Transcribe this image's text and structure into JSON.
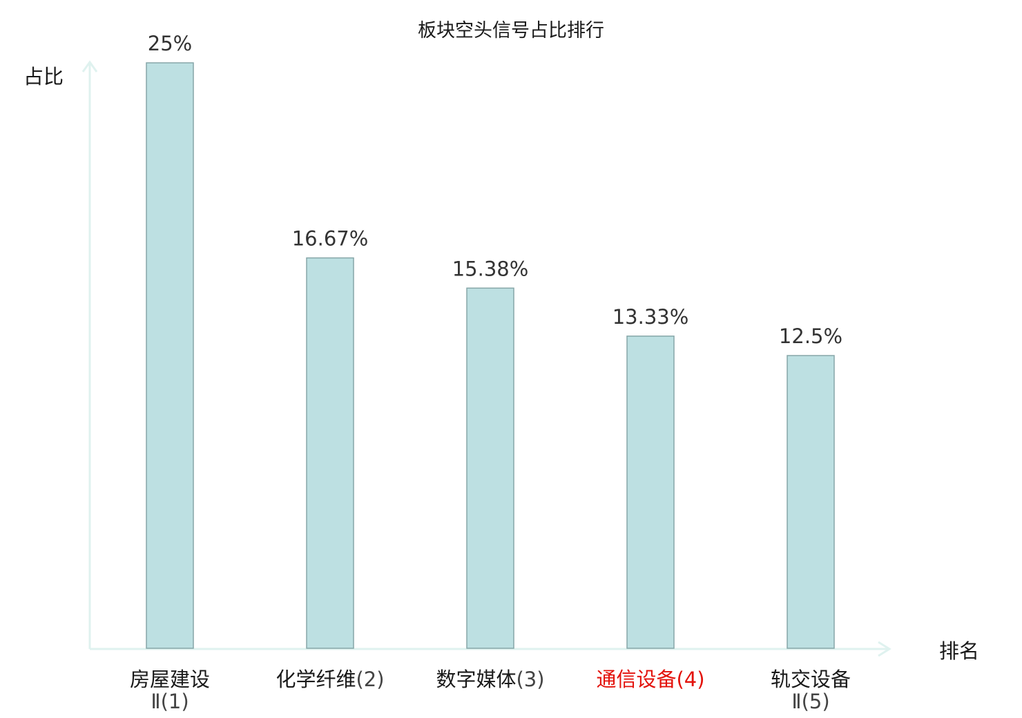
{
  "chart_data": {
    "type": "bar",
    "title": "板块空头信号占比排行",
    "ylabel": "占比",
    "xlabel": "排名",
    "ylim": [
      0,
      25
    ],
    "grid": false,
    "categories": [
      {
        "name": "房屋建设",
        "rank": "",
        "sub": "Ⅱ(1)",
        "highlight": false
      },
      {
        "name": "化学纤维",
        "rank": "(2)",
        "sub": "",
        "highlight": false
      },
      {
        "name": "数字媒体",
        "rank": "(3)",
        "sub": "",
        "highlight": false
      },
      {
        "name": "通信设备",
        "rank": "(4)",
        "sub": "",
        "highlight": true
      },
      {
        "name": "轨交设备",
        "rank": "",
        "sub": "Ⅱ(5)",
        "highlight": false
      }
    ],
    "values": [
      25,
      16.67,
      15.38,
      13.33,
      12.5
    ],
    "value_labels": [
      "25%",
      "16.67%",
      "15.38%",
      "13.33%",
      "12.5%"
    ],
    "colors": {
      "bar_fill": "#bde0e2",
      "bar_stroke": "#86a6a8",
      "axis": "#dff2ef",
      "highlight": "#e3120b"
    }
  }
}
